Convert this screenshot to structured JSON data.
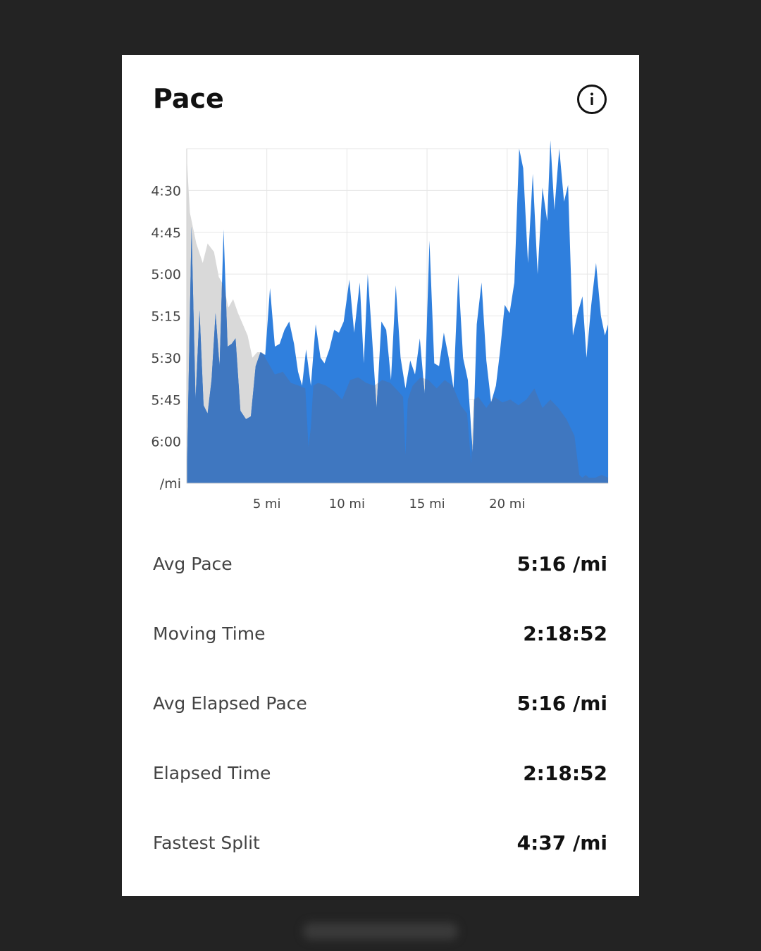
{
  "card": {
    "title": "Pace",
    "info_icon": "info-icon"
  },
  "stats": [
    {
      "label": "Avg Pace",
      "value": "5:16 /mi"
    },
    {
      "label": "Moving Time",
      "value": "2:18:52"
    },
    {
      "label": "Avg Elapsed Pace",
      "value": "5:16 /mi"
    },
    {
      "label": "Elapsed Time",
      "value": "2:18:52"
    },
    {
      "label": "Fastest Split",
      "value": "4:37 /mi"
    }
  ],
  "colors": {
    "pace_fill": "#2f7fdd",
    "pace_overlap": "#3f77c0",
    "elevation_fill": "#d9d9d9",
    "grid": "#e6e6e6"
  },
  "chart_data": {
    "type": "area",
    "xlabel": "",
    "ylabel": "",
    "x_ticks": [
      {
        "value": 5,
        "label": "5 mi"
      },
      {
        "value": 10,
        "label": "10 mi"
      },
      {
        "value": 15,
        "label": "15 mi"
      },
      {
        "value": 20,
        "label": "20 mi"
      }
    ],
    "y_ticks": [
      {
        "value": 270,
        "label": "4:30"
      },
      {
        "value": 285,
        "label": "4:45"
      },
      {
        "value": 300,
        "label": "5:00"
      },
      {
        "value": 315,
        "label": "5:15"
      },
      {
        "value": 330,
        "label": "5:30"
      },
      {
        "value": 345,
        "label": "5:45"
      },
      {
        "value": 360,
        "label": "6:00"
      }
    ],
    "y_unit_label": "/mi",
    "x_range": [
      0,
      26.3
    ],
    "y_range_seconds_per_mile": [
      255,
      375
    ],
    "grid": true,
    "series": [
      {
        "role": "pace",
        "x": [
          0,
          0.3,
          0.55,
          0.8,
          1.05,
          1.3,
          1.55,
          1.8,
          2.05,
          2.3,
          2.55,
          2.8,
          3.05,
          3.35,
          3.7,
          4.0,
          4.3,
          4.6,
          4.9,
          5.2,
          5.5,
          5.8,
          6.1,
          6.4,
          6.7,
          6.95,
          7.2,
          7.45,
          7.75,
          8.05,
          8.35,
          8.6,
          8.9,
          9.2,
          9.5,
          9.8,
          10.15,
          10.45,
          10.8,
          11.05,
          11.3,
          11.55,
          11.85,
          12.15,
          12.45,
          12.75,
          13.05,
          13.35,
          13.65,
          13.95,
          14.25,
          14.55,
          14.85,
          15.15,
          15.45,
          15.75,
          16.05,
          16.35,
          16.65,
          16.95,
          17.25,
          17.55,
          17.85,
          18.1,
          18.4,
          18.7,
          19.0,
          19.3,
          19.55,
          19.85,
          20.15,
          20.45,
          20.75,
          21.0,
          21.3,
          21.6,
          21.9,
          22.2,
          22.5,
          22.7,
          22.95,
          23.25,
          23.55,
          23.8,
          24.1,
          24.4,
          24.7,
          24.95,
          25.25,
          25.55,
          25.85,
          26.1,
          26.3
        ],
        "y": [
          375,
          283,
          345,
          313,
          347,
          350,
          338,
          314,
          333,
          284,
          326,
          325,
          323,
          349,
          352,
          351,
          333,
          328,
          329,
          305,
          326,
          325,
          320,
          317,
          325,
          335,
          340,
          327,
          340,
          318,
          330,
          332,
          327,
          320,
          321,
          317,
          302,
          321,
          303,
          332,
          300,
          321,
          348,
          317,
          320,
          338,
          304,
          330,
          341,
          331,
          336,
          323,
          343,
          288,
          332,
          333,
          321,
          330,
          341,
          300,
          330,
          338,
          364,
          318,
          303,
          331,
          346,
          340,
          328,
          311,
          314,
          303,
          255,
          262,
          296,
          264,
          300,
          269,
          281,
          252,
          277,
          255,
          274,
          268,
          322,
          314,
          308,
          330,
          311,
          296,
          315,
          322,
          318
        ]
      },
      {
        "role": "elevation",
        "x": [
          0,
          0.2,
          0.6,
          1.0,
          1.3,
          1.7,
          2.0,
          2.3,
          2.6,
          2.9,
          3.2,
          3.5,
          3.8,
          4.1,
          4.4,
          4.7,
          5.0,
          5.5,
          6.0,
          6.5,
          7.0,
          7.4,
          7.6,
          7.75,
          7.9,
          8.2,
          8.7,
          9.2,
          9.7,
          10.2,
          10.7,
          11.2,
          11.7,
          12.2,
          12.7,
          13.2,
          13.5,
          13.65,
          13.8,
          14.1,
          14.6,
          15.1,
          15.6,
          16.1,
          16.6,
          17.1,
          17.5,
          17.75,
          17.9,
          18.2,
          18.7,
          19.2,
          19.7,
          20.2,
          20.7,
          21.2,
          21.7,
          22.2,
          22.7,
          23.2,
          23.7,
          24.2,
          24.5,
          24.7,
          24.9,
          25.1,
          25.5,
          25.9,
          26.3
        ],
        "y": [
          258,
          278,
          289,
          296,
          289,
          292,
          301,
          304,
          312,
          309,
          314,
          318,
          322,
          330,
          328,
          328,
          331,
          336,
          335,
          339,
          340,
          341,
          362,
          355,
          340,
          339,
          340,
          342,
          345,
          338,
          337,
          339,
          340,
          338,
          339,
          342,
          344,
          365,
          345,
          340,
          337,
          338,
          341,
          338,
          340,
          347,
          350,
          368,
          345,
          344,
          348,
          344,
          346,
          345,
          347,
          345,
          341,
          348,
          345,
          348,
          352,
          358,
          372,
          373,
          372,
          373,
          373,
          372,
          373
        ]
      }
    ]
  }
}
